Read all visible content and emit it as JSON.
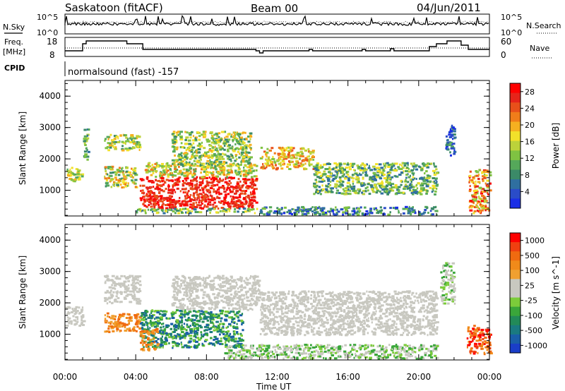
{
  "header": {
    "station": "Saskatoon (fitACF)",
    "beam": "Beam 00",
    "date": "04/Jun/2011"
  },
  "noise_panel": {
    "left_label": "N.Sky",
    "right_label": "N.Search",
    "left_ticks": [
      "10^5",
      "10^0"
    ],
    "right_ticks": [
      "10^5",
      "10^0"
    ]
  },
  "freq_panel": {
    "left_label_1": "Freq.",
    "left_label_2": "[MHz]",
    "right_label": "Nave",
    "left_ticks": [
      "18",
      "8"
    ],
    "right_ticks": [
      "60",
      "0"
    ],
    "cpid_label": "CPID",
    "cpid_text": "normalsound (fast) -157"
  },
  "colors": {
    "power": [
      "#1a2ee6",
      "#2a4cc8",
      "#2f6fa0",
      "#3b8a68",
      "#55a85a",
      "#7fc242",
      "#bcd23a",
      "#f2e12a",
      "#f5b020",
      "#f07d1a",
      "#e8501a",
      "#e6241a",
      "#ff0000"
    ],
    "velocity": [
      "#1a3ec8",
      "#1a5ea8",
      "#1a7a80",
      "#228a58",
      "#3aa63a",
      "#7ccc3a",
      "#c8c8c0",
      "#c8c8c0",
      "#f0a030",
      "#f08a1a",
      "#f06a10",
      "#f04010",
      "#ff0000"
    ]
  },
  "chart_data": [
    {
      "type": "heatmap",
      "title": "",
      "xlabel": "",
      "ylabel": "Slant Range [km]",
      "x_ticks": [
        "00:00",
        "04:00",
        "08:00",
        "12:00",
        "16:00",
        "20:00",
        "00:00"
      ],
      "y_ticks": [
        "1000",
        "2000",
        "3000",
        "4000"
      ],
      "ylim": [
        180,
        4500
      ],
      "xlim_hours": [
        0,
        24
      ],
      "colorbar_label": "Power [dB]",
      "colorbar_ticks": [
        "4",
        "8",
        "12",
        "16",
        "20",
        "24",
        "28"
      ],
      "colorbar_range": [
        0,
        30
      ],
      "scatter_regions": [
        {
          "t0": 0.0,
          "t1": 1.0,
          "r0": 1300,
          "r1": 1750,
          "c0": 4,
          "c1": 8
        },
        {
          "t0": 1.0,
          "t1": 1.3,
          "r0": 2000,
          "r1": 3000,
          "c0": 2,
          "c1": 6
        },
        {
          "t0": 2.2,
          "t1": 4.2,
          "r0": 2300,
          "r1": 2800,
          "c0": 3,
          "c1": 8
        },
        {
          "t0": 2.2,
          "t1": 4.0,
          "r0": 1100,
          "r1": 1800,
          "c0": 3,
          "c1": 9
        },
        {
          "t0": 4.2,
          "t1": 10.8,
          "r0": 450,
          "r1": 1450,
          "c0": 10,
          "c1": 12
        },
        {
          "t0": 4.5,
          "t1": 10.8,
          "r0": 1450,
          "r1": 1900,
          "c0": 4,
          "c1": 9
        },
        {
          "t0": 6.0,
          "t1": 10.5,
          "r0": 1800,
          "r1": 2900,
          "c0": 3,
          "c1": 8
        },
        {
          "t0": 4.0,
          "t1": 11.0,
          "r0": 300,
          "r1": 450,
          "c0": 2,
          "c1": 7
        },
        {
          "t0": 11.0,
          "t1": 14.0,
          "r0": 1700,
          "r1": 2400,
          "c0": 5,
          "c1": 10
        },
        {
          "t0": 14.0,
          "t1": 21.0,
          "r0": 900,
          "r1": 1900,
          "c0": 2,
          "c1": 7
        },
        {
          "t0": 11.0,
          "t1": 21.0,
          "r0": 250,
          "r1": 500,
          "c0": 0,
          "c1": 5
        },
        {
          "t0": 21.5,
          "t1": 22.0,
          "r0": 2100,
          "r1": 3100,
          "c0": 0,
          "c1": 4
        },
        {
          "t0": 22.8,
          "t1": 24.0,
          "r0": 300,
          "r1": 1700,
          "c0": 5,
          "c1": 12
        }
      ]
    },
    {
      "type": "heatmap",
      "title": "",
      "xlabel": "Time UT",
      "ylabel": "Slant Range [km]",
      "x_ticks": [
        "00:00",
        "04:00",
        "08:00",
        "12:00",
        "16:00",
        "20:00",
        "00:00"
      ],
      "y_ticks": [
        "1000",
        "2000",
        "3000",
        "4000"
      ],
      "ylim": [
        180,
        4500
      ],
      "xlim_hours": [
        0,
        24
      ],
      "colorbar_label": "Velocity [m s^-1]",
      "colorbar_ticks": [
        "1000",
        "500",
        "100",
        "25",
        "-25",
        "-100",
        "-500",
        "-1000"
      ],
      "colorbar_range": [
        1000,
        -1000
      ],
      "scatter_regions": [
        {
          "t0": 0.0,
          "t1": 1.0,
          "r0": 1300,
          "r1": 1900,
          "c0": 6,
          "c1": 7
        },
        {
          "t0": 2.2,
          "t1": 4.2,
          "r0": 1100,
          "r1": 1700,
          "c0": 8,
          "c1": 10
        },
        {
          "t0": 2.2,
          "t1": 4.2,
          "r0": 2000,
          "r1": 2900,
          "c0": 6,
          "c1": 7
        },
        {
          "t0": 4.2,
          "t1": 10.0,
          "r0": 600,
          "r1": 1800,
          "c0": 1,
          "c1": 5
        },
        {
          "t0": 4.2,
          "t1": 5.2,
          "r0": 500,
          "r1": 1200,
          "c0": 8,
          "c1": 10
        },
        {
          "t0": 6.0,
          "t1": 11.0,
          "r0": 1800,
          "r1": 2900,
          "c0": 6,
          "c1": 7
        },
        {
          "t0": 11.0,
          "t1": 21.0,
          "r0": 1000,
          "r1": 2400,
          "c0": 6,
          "c1": 7
        },
        {
          "t0": 9.0,
          "t1": 21.0,
          "r0": 250,
          "r1": 700,
          "c0": 4,
          "c1": 7
        },
        {
          "t0": 21.2,
          "t1": 22.0,
          "r0": 2000,
          "r1": 3300,
          "c0": 4,
          "c1": 7
        },
        {
          "t0": 22.7,
          "t1": 24.0,
          "r0": 400,
          "r1": 1300,
          "c0": 9,
          "c1": 12
        }
      ]
    }
  ]
}
